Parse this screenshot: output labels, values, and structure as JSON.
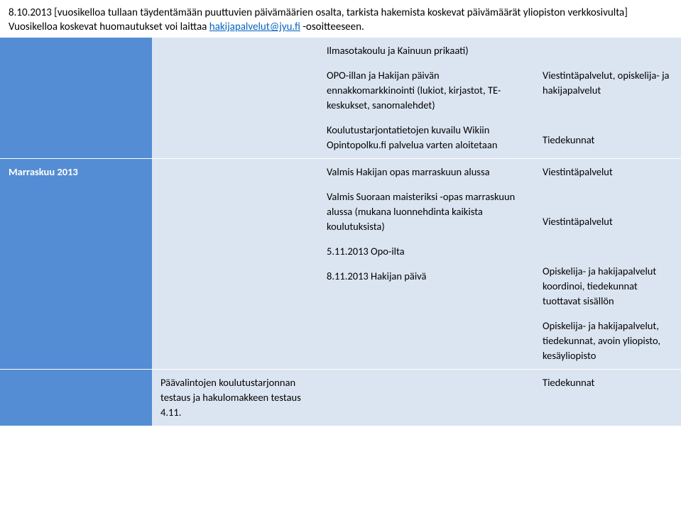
{
  "header": {
    "line1_pre": "8.10.2013 [vuosikelloa tullaan täydentämään puuttuvien päivämäärien osalta, tarkista hakemista koskevat päivämäärät yliopiston verkkosivulta]",
    "line2_pre": "Vuosikelloa koskevat huomautukset voi laittaa ",
    "email": "hakijapalvelut@jyu.fi",
    "line2_post": " -osoitteeseen."
  },
  "row1": {
    "c3_p1": "Ilmasotakoulu ja Kainuun prikaati)",
    "c3_p2": "OPO-illan ja Hakijan päivän ennakkomarkkinointi (lukiot, kirjastot, TE-keskukset, sanomalehdet)",
    "c3_p3": "Koulutustarjontatietojen kuvailu Wikiin Opintopolku.fi palvelua varten aloitetaan",
    "c4_p1": "Viestintäpalvelut, opiskelija- ja hakijapalvelut",
    "c4_p2": "Tiedekunnat"
  },
  "row2": {
    "c1": "Marraskuu 2013",
    "c3_p1": "Valmis Hakijan opas marraskuun alussa",
    "c3_p2": "Valmis Suoraan maisteriksi -opas  marraskuun alussa (mukana luonnehdinta kaikista koulutuksista)",
    "c3_p3": "5.11.2013 Opo-ilta",
    "c3_p4": "8.11.2013 Hakijan päivä",
    "c4_p1": "Viestintäpalvelut",
    "c4_p2": "Viestintäpalvelut",
    "c4_p3": "Opiskelija- ja hakijapalvelut koordinoi, tiedekunnat tuottavat sisällön",
    "c4_p4": "Opiskelija- ja hakijapalvelut, tiedekunnat, avoin yliopisto, kesäyliopisto"
  },
  "row3": {
    "c2": "Päävalintojen koulutustarjonnan testaus ja hakulomakkeen testaus 4.11.",
    "c4": "Tiedekunnat"
  }
}
